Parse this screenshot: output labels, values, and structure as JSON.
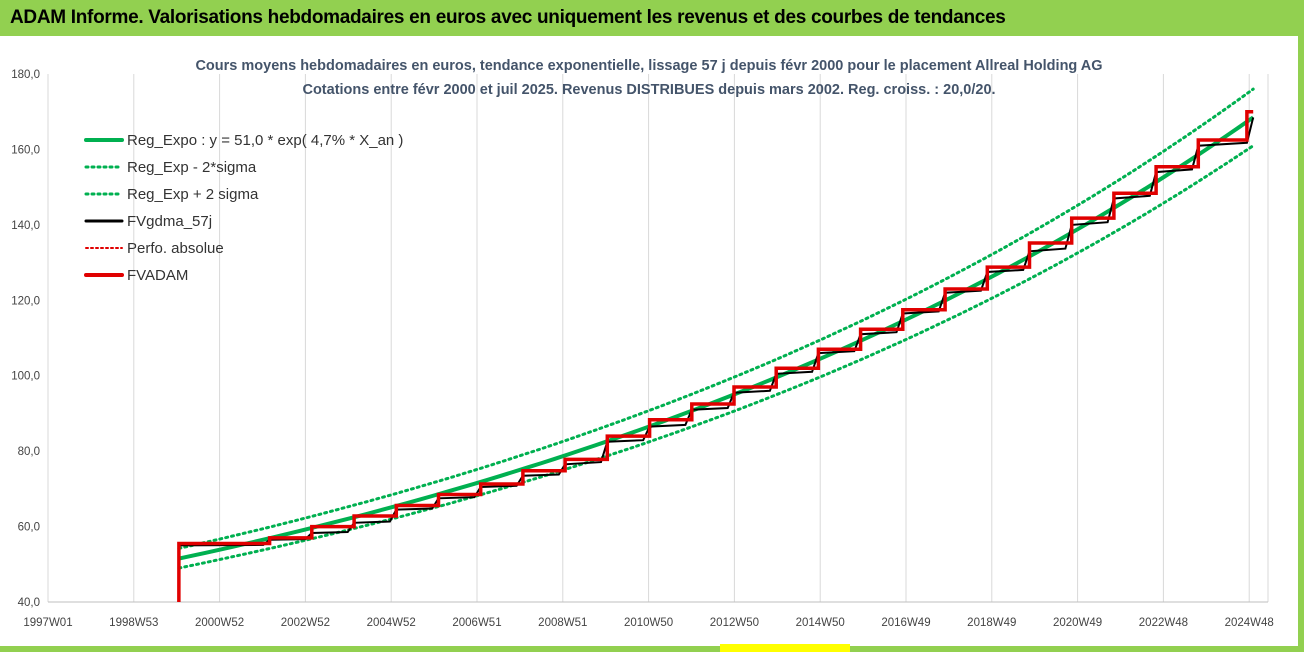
{
  "banner": {
    "title": "ADAM Informe. Valorisations hebdomadaires en euros avec uniquement les revenus et des courbes de tendances"
  },
  "colors": {
    "banner": "#92d050",
    "reg_expo": "#00b050",
    "fvgdma": "#000000",
    "fvadam": "#e00000"
  },
  "chart_data": {
    "type": "line",
    "title": "Cours moyens hebdomadaires en euros, tendance exponentielle, lissage 57 j depuis févr 2000 pour le placement Allreal Holding AG",
    "subtitle": "Cotations entre févr 2000 et juil 2025. Revenus DISTRIBUES depuis mars 2002. Reg. croiss. : 20,0/20.",
    "ylim": [
      40,
      180
    ],
    "y_ticks": [
      "40,0",
      "60,0",
      "80,0",
      "100,0",
      "120,0",
      "140,0",
      "160,0",
      "180,0"
    ],
    "x_ticks": [
      "1997W01",
      "1998W53",
      "2000W52",
      "2002W52",
      "2004W52",
      "2006W51",
      "2008W51",
      "2010W50",
      "2012W50",
      "2014W50",
      "2016W49",
      "2018W49",
      "2020W49",
      "2022W48",
      "2024W48"
    ],
    "xlim": [
      1997.0,
      2025.9
    ],
    "grid": "vertical",
    "legend_position": "top-left",
    "series": [
      {
        "name": "Reg_Expo : y = 51,0 * exp( 4,7% *  X_an )",
        "style": "solid",
        "color": "#00b050",
        "x": [
          2000.1,
          2025.55
        ],
        "y": [
          51.5,
          168.5
        ]
      },
      {
        "name": "Reg_Exp - 2*sigma",
        "style": "dotted",
        "color": "#00b050",
        "x": [
          2000.1,
          2025.55
        ],
        "y": [
          49.0,
          161.0
        ]
      },
      {
        "name": "Reg_Exp + 2 sigma",
        "style": "dotted",
        "color": "#00b050",
        "x": [
          2000.1,
          2025.55
        ],
        "y": [
          54.2,
          176.0
        ]
      },
      {
        "name": "FVgdma_57j",
        "style": "solid",
        "color": "#000000",
        "x": [
          2000.1,
          2002.25,
          2003.25,
          2004.25,
          2005.25,
          2006.25,
          2007.25,
          2008.25,
          2009.25,
          2010.25,
          2011.25,
          2012.25,
          2013.25,
          2014.25,
          2015.25,
          2016.25,
          2017.25,
          2018.25,
          2019.25,
          2020.25,
          2021.25,
          2022.25,
          2023.25,
          2024.25,
          2025.55
        ],
        "y": [
          55.0,
          56.5,
          58.3,
          61.0,
          64.5,
          67.5,
          70.5,
          73.5,
          76.5,
          82.5,
          86.5,
          91.0,
          95.5,
          100.5,
          106.0,
          111.0,
          116.5,
          122.0,
          127.5,
          133.0,
          140.0,
          147.0,
          154.0,
          161.0,
          168.5
        ]
      },
      {
        "name": "Perfo. absolue",
        "style": "dotted",
        "color": "#e00000",
        "x": [],
        "y": []
      },
      {
        "name": "FVADAM",
        "style": "step",
        "color": "#e00000",
        "x": [
          2000.1,
          2002.25,
          2003.25,
          2004.25,
          2005.25,
          2006.25,
          2007.25,
          2008.25,
          2009.25,
          2010.25,
          2011.25,
          2012.25,
          2013.25,
          2014.25,
          2015.25,
          2016.25,
          2017.25,
          2018.25,
          2019.25,
          2020.25,
          2021.25,
          2022.25,
          2023.25,
          2024.25,
          2025.4
        ],
        "y": [
          55.5,
          57.0,
          60.0,
          62.8,
          65.6,
          68.5,
          71.3,
          74.8,
          77.8,
          84.0,
          88.3,
          92.5,
          97.0,
          102.0,
          107.0,
          112.3,
          117.5,
          123.0,
          128.8,
          135.2,
          141.8,
          148.4,
          155.4,
          162.5,
          170.0
        ],
        "start_y": 40.0,
        "end_x": 2025.55
      }
    ]
  }
}
